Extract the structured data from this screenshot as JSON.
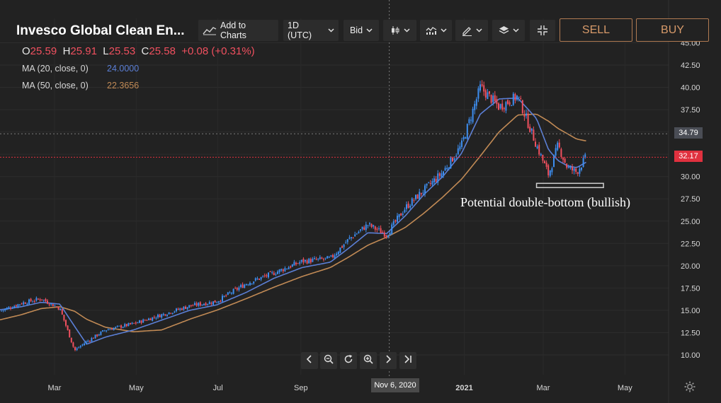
{
  "instrument": {
    "title": "Invesco Global Clean En..."
  },
  "toolbar": {
    "add_to_charts": "Add to Charts",
    "interval": "1D (UTC)",
    "price_type": "Bid",
    "sell_label": "SELL",
    "buy_label": "BUY"
  },
  "ohlc": {
    "o_label": "O",
    "o": "25.59",
    "h_label": "H",
    "h": "25.91",
    "l_label": "L",
    "l": "25.53",
    "c_label": "C",
    "c": "25.58",
    "change": "+0.08 (+0.31%)"
  },
  "indicators": [
    {
      "label": "MA (20, close, 0)",
      "value": "24.0000",
      "color": "#5b7fd6"
    },
    {
      "label": "MA (50, close, 0)",
      "value": "22.3656",
      "color": "#c18a55"
    }
  ],
  "colors": {
    "up": "#3d8ef0",
    "down": "#f0505f",
    "background": "#222222"
  },
  "crosshair": {
    "price_label": "34.79",
    "date_label": "Nov 6, 2020"
  },
  "last_price": {
    "label": "32.17"
  },
  "annotation": "Potential double-bottom (bullish)",
  "nav_icons": [
    "chevron-left-icon",
    "zoom-out-icon",
    "reset-icon",
    "zoom-in-icon",
    "chevron-right-icon",
    "jump-to-end-icon"
  ],
  "chart_data": {
    "type": "candlestick",
    "y_axis": {
      "ticks": [
        "45.00",
        "42.50",
        "40.00",
        "37.50",
        "35.00",
        "32.50",
        "30.00",
        "27.50",
        "25.00",
        "22.50",
        "20.00",
        "17.50",
        "15.00",
        "12.50",
        "10.00"
      ],
      "range": [
        8.5,
        46.5
      ],
      "position": "right"
    },
    "x_axis": {
      "ticks": [
        "Mar",
        "May",
        "Jul",
        "Sep",
        "2021",
        "Mar",
        "May"
      ]
    },
    "close_path": {
      "dates": [
        "2020-01-22",
        "2020-02-05",
        "2020-02-20",
        "2020-03-05",
        "2020-03-16",
        "2020-03-25",
        "2020-04-08",
        "2020-04-29",
        "2020-05-20",
        "2020-06-10",
        "2020-06-30",
        "2020-07-22",
        "2020-08-12",
        "2020-09-02",
        "2020-09-23",
        "2020-10-07",
        "2020-10-21",
        "2020-11-04",
        "2020-11-18",
        "2020-12-02",
        "2020-12-16",
        "2020-12-30",
        "2021-01-13",
        "2021-01-27",
        "2021-02-10",
        "2021-02-24",
        "2021-03-05",
        "2021-03-12",
        "2021-03-19",
        "2021-03-26",
        "2021-04-02"
      ],
      "close": [
        15.0,
        15.8,
        16.3,
        15.2,
        10.5,
        11.5,
        12.8,
        13.5,
        14.5,
        15.5,
        16.0,
        18.0,
        19.2,
        20.5,
        20.8,
        23.0,
        24.6,
        23.5,
        26.5,
        28.5,
        30.5,
        33.5,
        40.0,
        37.8,
        39.0,
        33.5,
        30.2,
        33.5,
        31.0,
        30.5,
        32.17
      ]
    },
    "ma20": [
      15.1,
      15.4,
      15.9,
      15.7,
      13.2,
      11.2,
      12.0,
      12.8,
      13.9,
      15.0,
      15.6,
      17.0,
      18.6,
      19.8,
      20.4,
      22.0,
      23.7,
      23.6,
      25.6,
      28.0,
      30.0,
      32.6,
      37.0,
      38.7,
      38.8,
      36.5,
      33.0,
      31.8,
      31.2,
      31.0,
      31.6
    ],
    "ma50": [
      14.0,
      14.5,
      15.2,
      15.4,
      14.9,
      14.0,
      13.1,
      12.6,
      12.8,
      14.0,
      15.0,
      16.3,
      17.6,
      18.8,
      19.8,
      21.0,
      22.3,
      23.2,
      24.3,
      25.9,
      27.7,
      29.7,
      32.3,
      35.0,
      36.9,
      37.0,
      36.2,
      35.4,
      34.8,
      34.2,
      34.0
    ]
  }
}
